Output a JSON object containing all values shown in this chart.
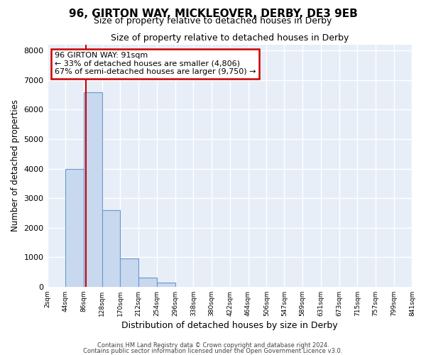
{
  "title1": "96, GIRTON WAY, MICKLEOVER, DERBY, DE3 9EB",
  "title2": "Size of property relative to detached houses in Derby",
  "xlabel": "Distribution of detached houses by size in Derby",
  "ylabel": "Number of detached properties",
  "bar_color": "#c8d8ef",
  "bar_edge_color": "#6699cc",
  "fig_bg_color": "#ffffff",
  "plot_bg_color": "#e8eef8",
  "grid_color": "#ffffff",
  "bin_edges": [
    2,
    44,
    86,
    128,
    170,
    212,
    254,
    296,
    338,
    380,
    422,
    464,
    506,
    547,
    589,
    631,
    673,
    715,
    757,
    799,
    841
  ],
  "bin_labels": [
    "2sqm",
    "44sqm",
    "86sqm",
    "128sqm",
    "170sqm",
    "212sqm",
    "254sqm",
    "296sqm",
    "338sqm",
    "380sqm",
    "422sqm",
    "464sqm",
    "506sqm",
    "547sqm",
    "589sqm",
    "631sqm",
    "673sqm",
    "715sqm",
    "757sqm",
    "799sqm",
    "841sqm"
  ],
  "bar_heights": [
    0,
    4000,
    6600,
    2600,
    970,
    320,
    130,
    0,
    0,
    0,
    0,
    0,
    0,
    0,
    0,
    0,
    0,
    0,
    0,
    0
  ],
  "property_size": 91,
  "vline_color": "#cc0000",
  "annotation_line1": "96 GIRTON WAY: 91sqm",
  "annotation_line2": "← 33% of detached houses are smaller (4,806)",
  "annotation_line3": "67% of semi-detached houses are larger (9,750) →",
  "annotation_box_color": "#ffffff",
  "annotation_box_edge": "#cc0000",
  "ylim": [
    0,
    8200
  ],
  "yticks": [
    0,
    1000,
    2000,
    3000,
    4000,
    5000,
    6000,
    7000,
    8000
  ],
  "footer1": "Contains HM Land Registry data © Crown copyright and database right 2024.",
  "footer2": "Contains public sector information licensed under the Open Government Licence v3.0."
}
